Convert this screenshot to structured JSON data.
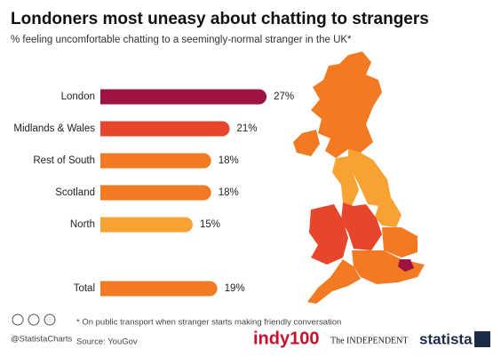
{
  "chart_data": {
    "type": "bar",
    "title": "Londoners most uneasy about chatting to strangers",
    "subtitle": "% feeling uncomfortable chatting to a seemingly-normal stranger in the UK*",
    "categories": [
      "London",
      "Midlands & Wales",
      "Rest of South",
      "Scotland",
      "North",
      "Total"
    ],
    "values": [
      27,
      21,
      18,
      18,
      15,
      19
    ],
    "value_labels": [
      "27%",
      "21%",
      "18%",
      "18%",
      "15%",
      "19%"
    ],
    "colors": [
      "#9e1440",
      "#e8452d",
      "#f27a22",
      "#f27a22",
      "#f8a234",
      "#f27a22"
    ],
    "note": "* On public transport when stranger starts making friendly conversation",
    "handle": "@StatistaCharts",
    "source": "Source: YouGov",
    "logos": [
      "indy100",
      "The INDEPENDENT",
      "statista"
    ]
  }
}
